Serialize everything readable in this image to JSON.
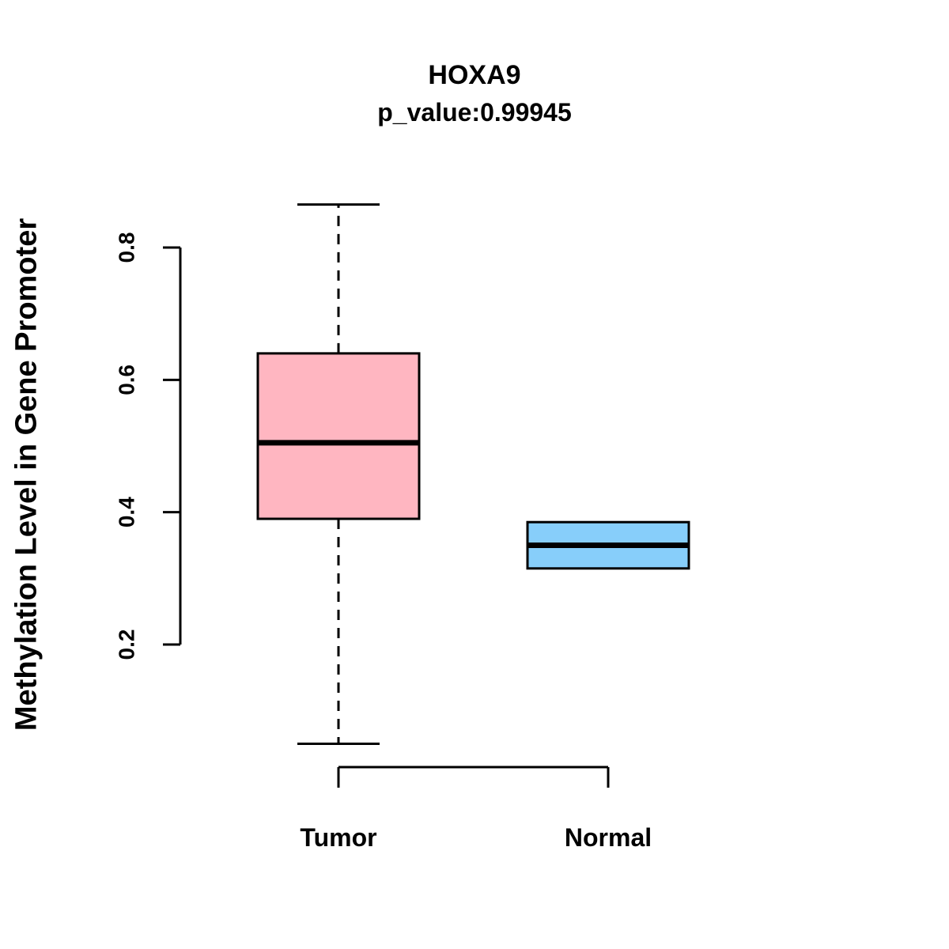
{
  "chart_data": {
    "type": "boxplot",
    "title": "HOXA9",
    "subtitle": "p_value:0.99945",
    "ylabel": "Methylation Level in Gene Promoter",
    "xlabel": "",
    "yticks": [
      0.2,
      0.4,
      0.6,
      0.8
    ],
    "axis_range": [
      0.2,
      0.8
    ],
    "grid": false,
    "legend": "none",
    "categories": [
      "Tumor",
      "Normal"
    ],
    "series": [
      {
        "name": "Tumor",
        "fill": "#FFB6C1",
        "whisker_low": 0.05,
        "q1": 0.39,
        "median": 0.505,
        "q3": 0.64,
        "whisker_high": 0.865
      },
      {
        "name": "Normal",
        "fill": "#87CEFA",
        "whisker_low": 0.315,
        "q1": 0.315,
        "median": 0.35,
        "q3": 0.385,
        "whisker_high": 0.385
      }
    ],
    "colors": {
      "tumor_box": "#FFB6C1",
      "normal_box": "#87CEFA",
      "stroke": "#000000",
      "background": "#FFFFFF"
    }
  }
}
